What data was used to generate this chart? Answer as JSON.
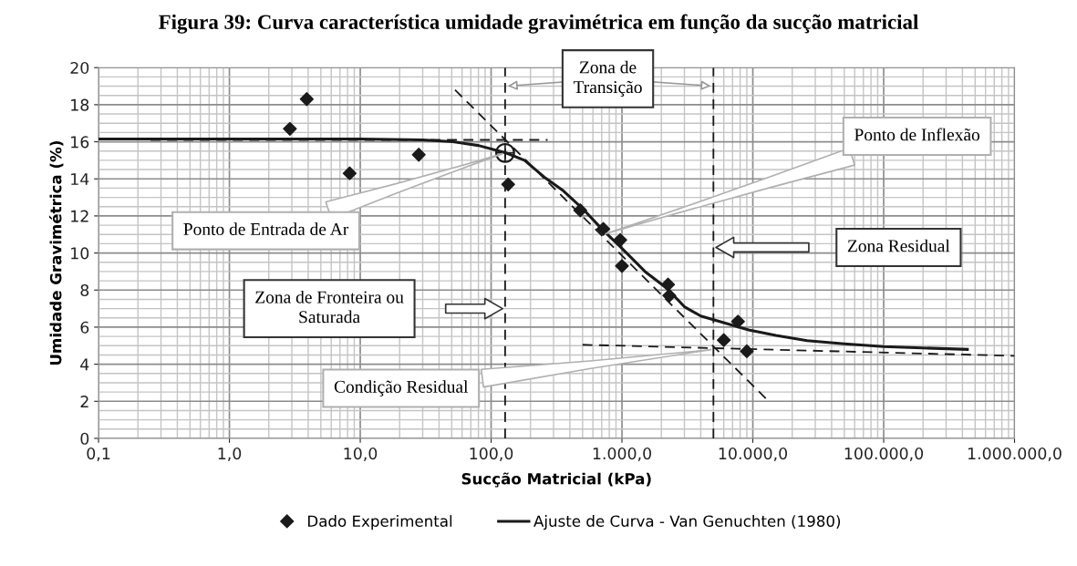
{
  "chart_data": {
    "type": "scatter",
    "title": "Figura 39: Curva característica umidade gravimétrica em função da sucção matricial",
    "xlabel": "Sucção Matricial (kPa)",
    "ylabel": "Umidade Gravimétrica (%)",
    "log": "x",
    "xlim": [
      0.1,
      1000000
    ],
    "ylim": [
      0,
      20
    ],
    "xticks": [
      {
        "value": 0.1,
        "label": "0,1"
      },
      {
        "value": 1,
        "label": "1,0"
      },
      {
        "value": 10,
        "label": "10,0"
      },
      {
        "value": 100,
        "label": "100,0"
      },
      {
        "value": 1000,
        "label": "1.000,0"
      },
      {
        "value": 10000,
        "label": "10.000,0"
      },
      {
        "value": 100000,
        "label": "100.000,0"
      },
      {
        "value": 1000000,
        "label": "1.000.000,0"
      }
    ],
    "yticks": [
      0,
      2,
      4,
      6,
      8,
      10,
      12,
      14,
      16,
      18,
      20
    ],
    "grid": true,
    "legend": "bottom",
    "series": [
      {
        "name": "Dado Experimental",
        "marker": "diamond",
        "color": "#1a1a1a",
        "x": [
          2.9,
          3.9,
          8.3,
          28,
          135,
          480,
          720,
          970,
          1000,
          2250,
          2300,
          6000,
          7700,
          9000
        ],
        "values": [
          16.7,
          18.3,
          14.3,
          15.3,
          13.7,
          12.3,
          11.3,
          10.7,
          9.3,
          8.3,
          7.7,
          5.3,
          6.3,
          4.7
        ]
      },
      {
        "name": "Ajuste de Curva - Van Genuchten (1980)",
        "type": "line",
        "marker": "none",
        "line_style": "solid",
        "color": "#1a1a1a",
        "x": [
          0.1,
          10,
          30,
          51,
          80,
          130,
          180,
          254,
          350,
          500,
          700,
          950,
          1500,
          2200,
          3000,
          4000,
          5000,
          9300,
          15000,
          26000,
          50000,
          100000,
          436000
        ],
        "values": [
          16.15,
          16.15,
          16.1,
          16.0,
          15.8,
          15.4,
          15.0,
          14.1,
          13.4,
          12.4,
          11.3,
          10.4,
          9.0,
          8.1,
          7.1,
          6.6,
          6.4,
          5.85,
          5.55,
          5.27,
          5.1,
          4.95,
          4.8
        ]
      },
      {
        "type": "line",
        "marker": "none",
        "line_style": "dashed",
        "color": "#1a1a1a",
        "x": [
          0.25,
          270
        ],
        "values": [
          16.1,
          16.1
        ]
      },
      {
        "type": "line",
        "marker": "none",
        "line_style": "dashed",
        "color": "#1a1a1a",
        "x": [
          53,
          12800
        ],
        "values": [
          18.8,
          2.1
        ]
      },
      {
        "type": "line",
        "marker": "none",
        "line_style": "dashed",
        "color": "#1a1a1a",
        "x": [
          500,
          1000000
        ],
        "values": [
          5.05,
          4.45
        ]
      },
      {
        "marker": "circle",
        "color": "#1a1a1a",
        "x": [
          128
        ],
        "values": [
          15.4
        ]
      }
    ],
    "ref_lines": [
      {
        "axis": "x",
        "value": 128,
        "color": "#1a1a1a",
        "line_style": "dashed"
      },
      {
        "axis": "x",
        "value": 5000,
        "color": "#1a1a1a",
        "line_style": "dashed"
      }
    ],
    "annotations": [
      "Zona de\nTransição",
      {
        "text": "Ponto de Inflexão",
        "x": 720,
        "y": 11.0
      },
      {
        "text": "Ponto de Entrada de Ar",
        "x": 128,
        "y": 15.4
      },
      "Zona Residual",
      "Zona de Fronteira ou\nSaturada",
      {
        "text": "Condição Residual",
        "x": 5000,
        "y": 4.8
      }
    ]
  }
}
